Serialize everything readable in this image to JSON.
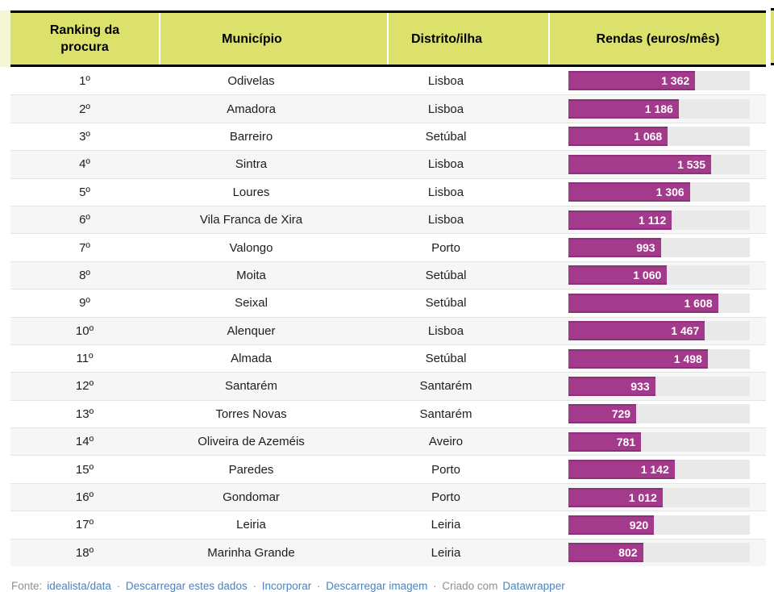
{
  "header": {
    "columns": [
      "Ranking da procura",
      "Município",
      "Distrito/ilha",
      "Rendas (euros/mês)"
    ]
  },
  "chart_data": {
    "type": "table",
    "title": "",
    "columns": [
      "Ranking da procura",
      "Município",
      "Distrito/ilha",
      "Rendas (euros/mês)"
    ],
    "bar_axis": {
      "min": 0,
      "max": 1950
    },
    "bar_color": "#a33a8c",
    "track_color": "#e9e9e9",
    "rows": [
      {
        "rank": "1º",
        "municipality": "Odivelas",
        "district": "Lisboa",
        "rent": 1362,
        "rent_label": "1 362"
      },
      {
        "rank": "2º",
        "municipality": "Amadora",
        "district": "Lisboa",
        "rent": 1186,
        "rent_label": "1 186"
      },
      {
        "rank": "3º",
        "municipality": "Barreiro",
        "district": "Setúbal",
        "rent": 1068,
        "rent_label": "1 068"
      },
      {
        "rank": "4º",
        "municipality": "Sintra",
        "district": "Lisboa",
        "rent": 1535,
        "rent_label": "1 535"
      },
      {
        "rank": "5º",
        "municipality": "Loures",
        "district": "Lisboa",
        "rent": 1306,
        "rent_label": "1 306"
      },
      {
        "rank": "6º",
        "municipality": "Vila Franca de Xira",
        "district": "Lisboa",
        "rent": 1112,
        "rent_label": "1 112"
      },
      {
        "rank": "7º",
        "municipality": "Valongo",
        "district": "Porto",
        "rent": 993,
        "rent_label": "993"
      },
      {
        "rank": "8º",
        "municipality": "Moita",
        "district": "Setúbal",
        "rent": 1060,
        "rent_label": "1 060"
      },
      {
        "rank": "9º",
        "municipality": "Seixal",
        "district": "Setúbal",
        "rent": 1608,
        "rent_label": "1 608"
      },
      {
        "rank": "10º",
        "municipality": "Alenquer",
        "district": "Lisboa",
        "rent": 1467,
        "rent_label": "1 467"
      },
      {
        "rank": "11º",
        "municipality": "Almada",
        "district": "Setúbal",
        "rent": 1498,
        "rent_label": "1 498"
      },
      {
        "rank": "12º",
        "municipality": "Santarém",
        "district": "Santarém",
        "rent": 933,
        "rent_label": "933"
      },
      {
        "rank": "13º",
        "municipality": "Torres Novas",
        "district": "Santarém",
        "rent": 729,
        "rent_label": "729"
      },
      {
        "rank": "14º",
        "municipality": "Oliveira de Azeméis",
        "district": "Aveiro",
        "rent": 781,
        "rent_label": "781"
      },
      {
        "rank": "15º",
        "municipality": "Paredes",
        "district": "Porto",
        "rent": 1142,
        "rent_label": "1 142"
      },
      {
        "rank": "16º",
        "municipality": "Gondomar",
        "district": "Porto",
        "rent": 1012,
        "rent_label": "1 012"
      },
      {
        "rank": "17º",
        "municipality": "Leiria",
        "district": "Leiria",
        "rent": 920,
        "rent_label": "920"
      },
      {
        "rank": "18º",
        "municipality": "Marinha Grande",
        "district": "Leiria",
        "rent": 802,
        "rent_label": "802"
      }
    ]
  },
  "footer": {
    "prefix": "Fonte:",
    "source_link": "idealista/data",
    "separator": "·",
    "link_download_data": "Descarregar estes dados",
    "link_embed": "Incorporar",
    "link_download_image": "Descarregar imagem",
    "created_label": "Criado com",
    "created_link": "Datawrapper"
  },
  "colors": {
    "header_bg": "#dbe16b",
    "header_border": "#000000",
    "bar_fill": "#a33a8c",
    "bar_track": "#e9e9e9",
    "row_alt_bg": "#f6f6f6",
    "cell_text": "#1d1d1d",
    "footer_text": "#8f8f8f",
    "footer_link": "#4d82bc"
  }
}
